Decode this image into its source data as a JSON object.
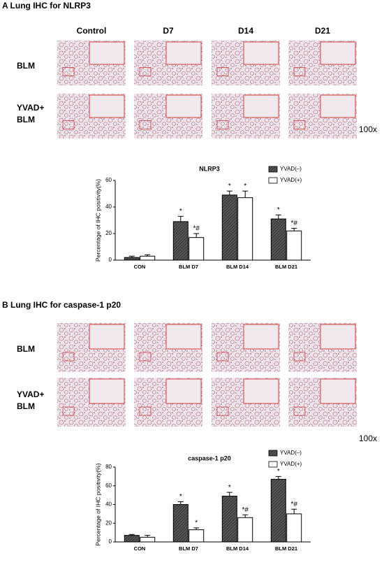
{
  "panels": [
    {
      "title": "A Lung IHC for NLRP3",
      "columns": [
        "Control",
        "D7",
        "D14",
        "D21"
      ],
      "rows": [
        [
          "BLM"
        ],
        [
          "YVAD+",
          "BLM"
        ]
      ],
      "magnification": "100x",
      "chart": {
        "type": "bar",
        "title": "NLRP3",
        "y_label": "Percentage of IHC positivity(%)",
        "categories": [
          "CON",
          "BLM D7",
          "BLM D14",
          "BLM D21"
        ],
        "series": [
          {
            "name": "YVAD(–)",
            "color": "#555555",
            "pattern": "hatch",
            "values": [
              2,
              29,
              49,
              31
            ],
            "errors": [
              1,
              4,
              3,
              3
            ],
            "annotations": [
              null,
              "*",
              "*",
              "*"
            ]
          },
          {
            "name": "YVAD(+)",
            "color": "#ffffff",
            "values": [
              3,
              17,
              47,
              22
            ],
            "errors": [
              1,
              3,
              5,
              2
            ],
            "annotations": [
              null,
              "*#",
              "*",
              "*#"
            ]
          }
        ],
        "ylim": [
          0,
          60
        ],
        "yticks": [
          0,
          20,
          40,
          60
        ]
      }
    },
    {
      "title": "B Lung IHC for caspase-1 p20",
      "columns": [
        "Control",
        "D7",
        "D14",
        "D21"
      ],
      "rows": [
        [
          "BLM"
        ],
        [
          "YVAD+",
          "BLM"
        ]
      ],
      "magnification": "100x",
      "chart": {
        "type": "bar",
        "title": "caspase-1 p20",
        "y_label": "Percentage of IHC positivity(%)",
        "categories": [
          "CON",
          "BLM D7",
          "BLM D14",
          "BLM D21"
        ],
        "series": [
          {
            "name": "YVAD(–)",
            "color": "#555555",
            "pattern": "hatch",
            "values": [
              7,
              40,
              49,
              67
            ],
            "errors": [
              1,
              3,
              4,
              3
            ],
            "annotations": [
              null,
              "*",
              "*",
              "*"
            ]
          },
          {
            "name": "YVAD(+)",
            "color": "#ffffff",
            "values": [
              5,
              13,
              26,
              30
            ],
            "errors": [
              2,
              2,
              3,
              5
            ],
            "annotations": [
              null,
              "*",
              "*#",
              "*#"
            ]
          }
        ],
        "ylim": [
          0,
          80
        ],
        "yticks": [
          0,
          20,
          40,
          60,
          80
        ]
      }
    }
  ]
}
